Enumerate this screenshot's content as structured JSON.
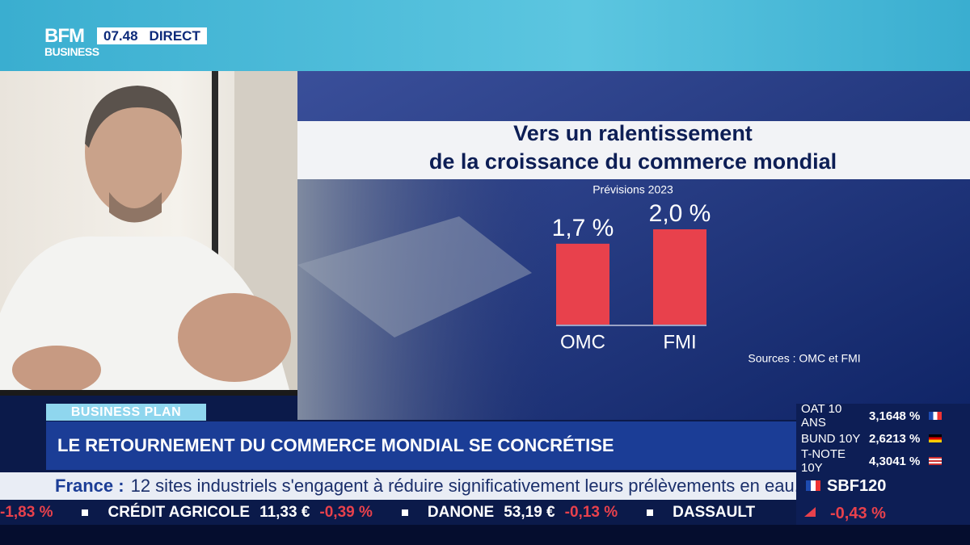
{
  "header": {
    "logo": [
      "BFM",
      "BUSINESS"
    ],
    "time": "07.48",
    "status": "DIRECT"
  },
  "chart_data": {
    "type": "bar",
    "title": [
      "Vers un ralentissement",
      "de la croissance du commerce mondial"
    ],
    "subtitle": "Prévisions 2023",
    "categories": [
      "OMC",
      "FMI"
    ],
    "values": [
      1.7,
      2.0
    ],
    "value_labels": [
      "1,7 %",
      "2,0 %"
    ],
    "color": "#e8414c",
    "source": "Sources : OMC et FMI"
  },
  "show": {
    "tag": "BUSINESS PLAN",
    "headline": "LE RETOURNEMENT DU COMMERCE MONDIAL SE CONCRÉTISE"
  },
  "rates": [
    {
      "name": "OAT 10 ANS",
      "value": "3,1648 %"
    },
    {
      "name": "BUND 10Y",
      "value": "2,6213 %"
    },
    {
      "name": "T-NOTE 10Y",
      "value": "4,3041 %"
    }
  ],
  "news": {
    "label": "France :",
    "text": "12 sites industriels s'engagent à réduire significativement leurs prélèvements en eau."
  },
  "ticker": [
    {
      "change": "-1,83 %"
    },
    {
      "name": "CRÉDIT AGRICOLE",
      "price": "11,33 €",
      "change": "-0,39 %"
    },
    {
      "name": "DANONE",
      "price": "53,19 €",
      "change": "-0,13 %"
    },
    {
      "name": "DASSAULT"
    }
  ],
  "index": {
    "name": "SBF120",
    "change": "-0,43 %"
  }
}
